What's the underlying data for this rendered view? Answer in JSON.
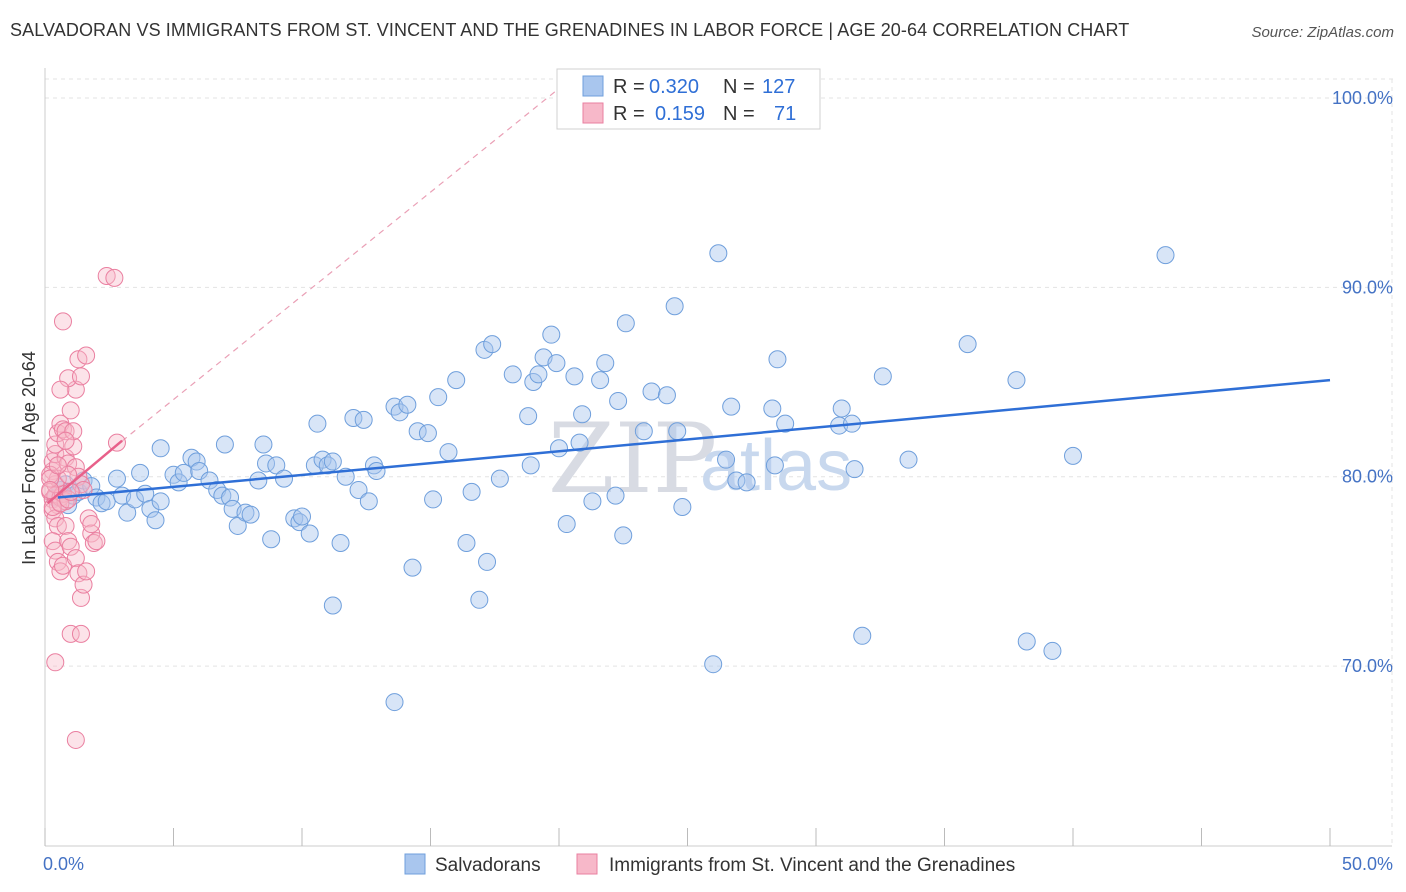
{
  "title": "SALVADORAN VS IMMIGRANTS FROM ST. VINCENT AND THE GRENADINES IN LABOR FORCE | AGE 20-64 CORRELATION CHART",
  "source": "Source: ZipAtlas.com",
  "watermark": {
    "part1": "ZIP",
    "part2": "atlas"
  },
  "legend": {
    "rows": [
      {
        "r_label": "R =",
        "r_value": "0.320",
        "n_label": "N =",
        "n_value": "127",
        "color": "#a9c6ee"
      },
      {
        "r_label": "R =",
        "r_value": "0.159",
        "n_label": "N =",
        "n_value": "71",
        "color": "#f7b8c9"
      }
    ]
  },
  "bottom_legend": [
    {
      "label": "Salvadorans",
      "color": "#a9c6ee"
    },
    {
      "label": "Immigrants from St. Vincent and the Grenadines",
      "color": "#f7b8c9"
    }
  ],
  "chart_data": {
    "type": "scatter",
    "xlabel": "",
    "ylabel": "In Labor Force | Age 20-64",
    "xlim": [
      0,
      50
    ],
    "ylim": [
      60.5,
      101
    ],
    "x_tick_labels": [
      "0.0%",
      "50.0%"
    ],
    "x_tick_marks": [
      0,
      5,
      10,
      15,
      20,
      25,
      30,
      35,
      40,
      45,
      50
    ],
    "y_ticks": [
      70,
      80,
      90,
      100
    ],
    "y_tick_labels": [
      "70.0%",
      "80.0%",
      "90.0%",
      "100.0%"
    ],
    "grid": true,
    "colors": {
      "blue": "#6f9fdc",
      "blue_fill": "#a9c6ee",
      "blue_line": "#2f6fd6",
      "pink": "#ea7fa0",
      "pink_fill": "#f7b8c9",
      "pink_line": "#e8608a",
      "diag": "#eaa0b6"
    },
    "series": [
      {
        "name": "Salvadorans",
        "trend": {
          "x": [
            0.5,
            50
          ],
          "y": [
            78.9,
            85.1
          ]
        },
        "points": [
          [
            0.4,
            78.9
          ],
          [
            0.6,
            79.3
          ],
          [
            0.8,
            79.6
          ],
          [
            0.9,
            78.5
          ],
          [
            1.1,
            79.0
          ],
          [
            1.3,
            79.2
          ],
          [
            1.5,
            79.8
          ],
          [
            1.8,
            79.5
          ],
          [
            2.0,
            78.9
          ],
          [
            2.2,
            78.6
          ],
          [
            2.4,
            78.7
          ],
          [
            2.8,
            79.9
          ],
          [
            3.0,
            79.0
          ],
          [
            3.2,
            78.1
          ],
          [
            3.5,
            78.8
          ],
          [
            3.7,
            80.2
          ],
          [
            3.9,
            79.1
          ],
          [
            4.1,
            78.3
          ],
          [
            4.3,
            77.7
          ],
          [
            4.5,
            81.5
          ],
          [
            4.5,
            78.7
          ],
          [
            5.0,
            80.1
          ],
          [
            5.2,
            79.7
          ],
          [
            5.4,
            80.2
          ],
          [
            5.7,
            81.0
          ],
          [
            5.9,
            80.8
          ],
          [
            6.0,
            80.3
          ],
          [
            6.4,
            79.8
          ],
          [
            6.7,
            79.3
          ],
          [
            6.9,
            79.0
          ],
          [
            7.0,
            81.7
          ],
          [
            7.2,
            78.9
          ],
          [
            7.3,
            78.3
          ],
          [
            7.5,
            77.4
          ],
          [
            7.8,
            78.1
          ],
          [
            8.0,
            78.0
          ],
          [
            8.3,
            79.8
          ],
          [
            8.5,
            81.7
          ],
          [
            8.6,
            80.7
          ],
          [
            8.8,
            76.7
          ],
          [
            9.0,
            80.6
          ],
          [
            9.3,
            79.9
          ],
          [
            9.7,
            77.8
          ],
          [
            9.9,
            77.6
          ],
          [
            10.0,
            77.9
          ],
          [
            10.3,
            77.0
          ],
          [
            10.5,
            80.6
          ],
          [
            10.6,
            82.8
          ],
          [
            10.8,
            80.9
          ],
          [
            11.0,
            80.6
          ],
          [
            11.2,
            80.8
          ],
          [
            11.5,
            76.5
          ],
          [
            11.7,
            80.0
          ],
          [
            12.0,
            83.1
          ],
          [
            12.2,
            79.3
          ],
          [
            12.4,
            83.0
          ],
          [
            12.6,
            78.7
          ],
          [
            12.8,
            80.6
          ],
          [
            12.9,
            80.3
          ],
          [
            13.6,
            83.7
          ],
          [
            13.8,
            83.4
          ],
          [
            14.1,
            83.8
          ],
          [
            14.5,
            82.4
          ],
          [
            14.3,
            75.2
          ],
          [
            14.9,
            82.3
          ],
          [
            15.1,
            78.8
          ],
          [
            15.3,
            84.2
          ],
          [
            15.7,
            81.3
          ],
          [
            16.0,
            85.1
          ],
          [
            16.4,
            76.5
          ],
          [
            16.6,
            79.2
          ],
          [
            16.9,
            73.5
          ],
          [
            17.1,
            86.7
          ],
          [
            17.2,
            75.5
          ],
          [
            17.4,
            87.0
          ],
          [
            17.7,
            79.9
          ],
          [
            18.2,
            85.4
          ],
          [
            18.8,
            83.2
          ],
          [
            19.0,
            85.0
          ],
          [
            19.2,
            85.4
          ],
          [
            19.4,
            86.3
          ],
          [
            19.7,
            87.5
          ],
          [
            19.9,
            86.0
          ],
          [
            20.0,
            81.5
          ],
          [
            20.3,
            77.5
          ],
          [
            20.6,
            85.3
          ],
          [
            20.8,
            81.8
          ],
          [
            20.9,
            83.3
          ],
          [
            21.3,
            78.7
          ],
          [
            21.6,
            85.1
          ],
          [
            21.8,
            86.0
          ],
          [
            22.2,
            79.0
          ],
          [
            22.3,
            84.0
          ],
          [
            22.5,
            76.9
          ],
          [
            22.6,
            88.1
          ],
          [
            23.3,
            82.4
          ],
          [
            23.6,
            84.5
          ],
          [
            24.2,
            84.3
          ],
          [
            24.5,
            89.0
          ],
          [
            24.6,
            82.4
          ],
          [
            24.8,
            78.4
          ],
          [
            26.2,
            91.8
          ],
          [
            26.0,
            70.1
          ],
          [
            26.5,
            80.9
          ],
          [
            26.7,
            83.7
          ],
          [
            26.9,
            79.8
          ],
          [
            27.3,
            79.7
          ],
          [
            28.3,
            83.6
          ],
          [
            28.4,
            80.6
          ],
          [
            28.5,
            86.2
          ],
          [
            28.8,
            82.8
          ],
          [
            30.9,
            82.7
          ],
          [
            31.0,
            83.6
          ],
          [
            31.4,
            82.8
          ],
          [
            31.8,
            71.6
          ],
          [
            31.5,
            80.4
          ],
          [
            32.6,
            85.3
          ],
          [
            33.6,
            80.9
          ],
          [
            35.9,
            87.0
          ],
          [
            37.8,
            85.1
          ],
          [
            38.2,
            71.3
          ],
          [
            39.2,
            70.8
          ],
          [
            40.0,
            81.1
          ],
          [
            43.6,
            91.7
          ],
          [
            13.6,
            68.1
          ],
          [
            11.2,
            73.2
          ],
          [
            18.9,
            80.6
          ]
        ]
      },
      {
        "name": "Immigrants from St. Vincent and the Grenadines",
        "trend": {
          "x": [
            0.1,
            3.0
          ],
          "y": [
            78.6,
            81.9
          ]
        },
        "points": [
          [
            0.2,
            79.2
          ],
          [
            0.3,
            78.8
          ],
          [
            0.4,
            79.0
          ],
          [
            0.5,
            78.5
          ],
          [
            0.3,
            78.2
          ],
          [
            0.4,
            77.8
          ],
          [
            0.5,
            77.4
          ],
          [
            0.6,
            78.9
          ],
          [
            0.7,
            79.1
          ],
          [
            0.8,
            78.7
          ],
          [
            0.3,
            80.3
          ],
          [
            0.3,
            80.8
          ],
          [
            0.4,
            81.2
          ],
          [
            0.4,
            81.7
          ],
          [
            0.5,
            82.3
          ],
          [
            0.6,
            82.8
          ],
          [
            0.7,
            82.5
          ],
          [
            0.8,
            82.4
          ],
          [
            0.8,
            81.0
          ],
          [
            0.9,
            80.7
          ],
          [
            0.4,
            79.6
          ],
          [
            0.5,
            79.9
          ],
          [
            0.3,
            76.6
          ],
          [
            0.4,
            76.1
          ],
          [
            0.5,
            75.5
          ],
          [
            0.6,
            75.0
          ],
          [
            0.7,
            75.3
          ],
          [
            0.8,
            77.4
          ],
          [
            0.9,
            76.6
          ],
          [
            1.0,
            76.3
          ],
          [
            1.2,
            75.7
          ],
          [
            1.3,
            74.9
          ],
          [
            1.4,
            73.6
          ],
          [
            1.5,
            74.3
          ],
          [
            1.6,
            75.0
          ],
          [
            1.7,
            77.8
          ],
          [
            1.8,
            77.0
          ],
          [
            1.9,
            76.5
          ],
          [
            2.0,
            76.6
          ],
          [
            1.1,
            81.6
          ],
          [
            1.2,
            80.5
          ],
          [
            1.3,
            80.0
          ],
          [
            1.4,
            79.6
          ],
          [
            1.5,
            79.3
          ],
          [
            1.1,
            82.4
          ],
          [
            1.0,
            83.5
          ],
          [
            1.2,
            84.6
          ],
          [
            1.3,
            86.2
          ],
          [
            0.9,
            85.2
          ],
          [
            1.4,
            85.3
          ],
          [
            0.6,
            84.6
          ],
          [
            0.7,
            88.2
          ],
          [
            1.6,
            86.4
          ],
          [
            2.4,
            90.6
          ],
          [
            2.7,
            90.5
          ],
          [
            1.0,
            71.7
          ],
          [
            1.4,
            71.7
          ],
          [
            0.4,
            70.2
          ],
          [
            1.2,
            66.1
          ],
          [
            2.8,
            81.8
          ],
          [
            0.2,
            80.1
          ],
          [
            0.2,
            79.9
          ],
          [
            0.2,
            79.3
          ],
          [
            0.3,
            78.4
          ],
          [
            0.6,
            78.6
          ],
          [
            0.9,
            78.8
          ],
          [
            1.0,
            79.2
          ],
          [
            0.8,
            81.9
          ],
          [
            0.9,
            80.1
          ],
          [
            1.8,
            77.5
          ],
          [
            0.5,
            80.6
          ]
        ]
      }
    ]
  }
}
